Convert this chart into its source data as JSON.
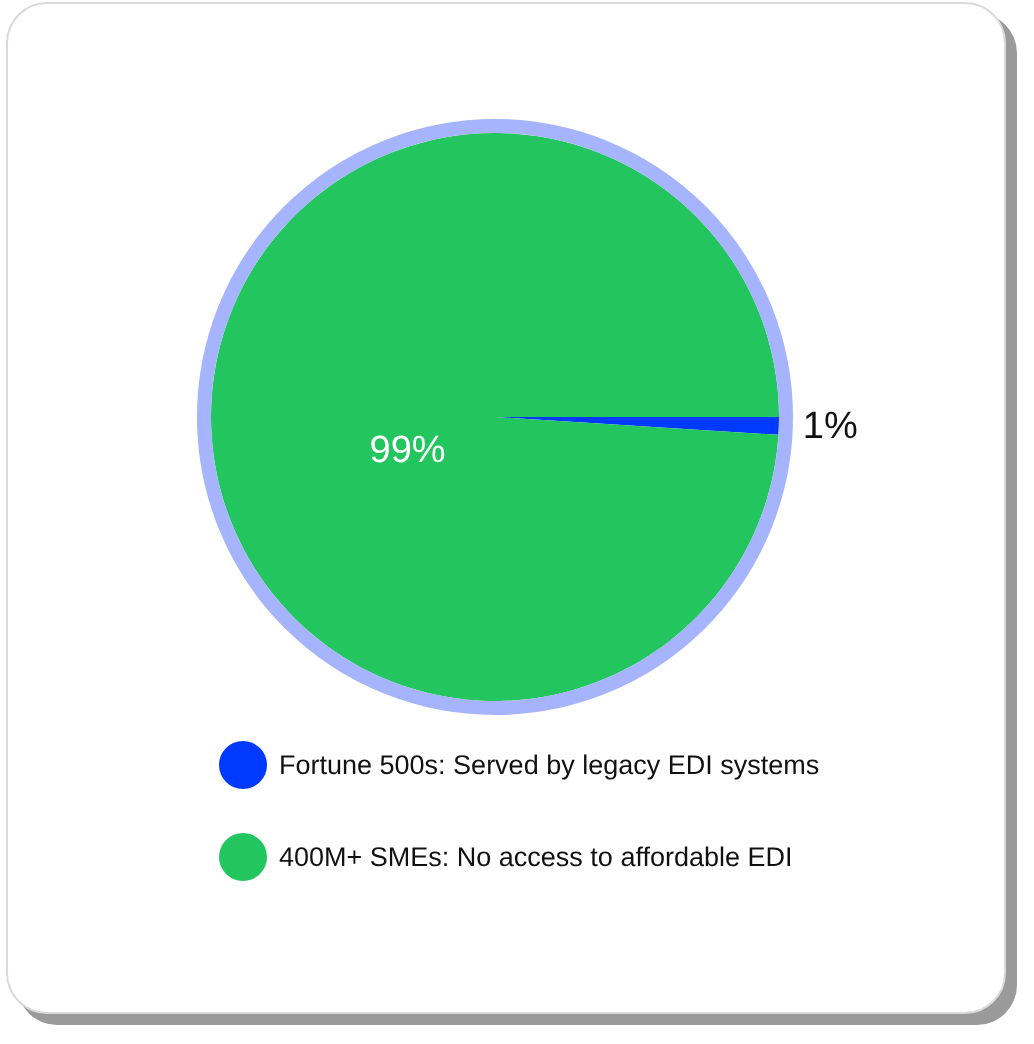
{
  "chart_data": {
    "type": "pie",
    "categories": [
      "Fortune 500s: Served by legacy EDI systems",
      "400M+ SMEs: No access to affordable EDI"
    ],
    "values": [
      1,
      99
    ],
    "colors": [
      "#0039ff",
      "#22c55e"
    ],
    "value_labels": [
      "1%",
      "99%"
    ],
    "legend": "bottom"
  }
}
